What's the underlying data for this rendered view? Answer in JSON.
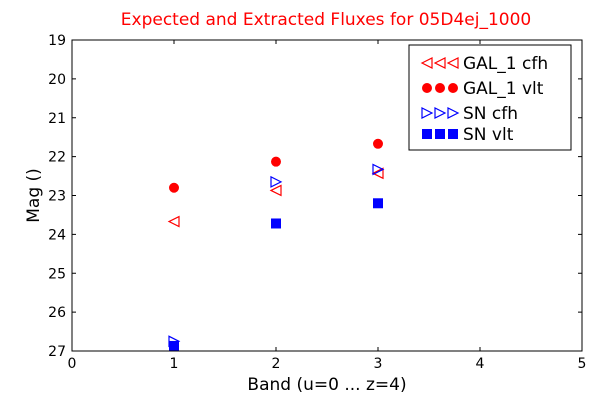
{
  "chart_data": {
    "type": "scatter",
    "title": "Expected and Extracted Fluxes for 05D4ej_1000",
    "title_color": "#ff0000",
    "xlabel": "Band (u=0 ... z=4)",
    "ylabel": "Mag ()",
    "xlim": [
      0,
      5
    ],
    "ylim": [
      27,
      19
    ],
    "y_inverted": true,
    "grid": false,
    "legend_position": "top-right",
    "x_ticks": [
      "0",
      "1",
      "2",
      "3",
      "4",
      "5"
    ],
    "y_ticks": [
      "19",
      "20",
      "21",
      "22",
      "23",
      "24",
      "25",
      "26",
      "27"
    ],
    "series": [
      {
        "name": "GAL_1 cfh",
        "marker": "triangle-left",
        "color": "#ff0000",
        "filled": false,
        "points": [
          {
            "x": 1.0,
            "y": 23.67
          },
          {
            "x": 2.0,
            "y": 22.87
          },
          {
            "x": 3.0,
            "y": 22.43
          }
        ]
      },
      {
        "name": "GAL_1 vlt",
        "marker": "circle",
        "color": "#ff0000",
        "filled": true,
        "points": [
          {
            "x": 1.0,
            "y": 22.8
          },
          {
            "x": 2.0,
            "y": 22.13
          },
          {
            "x": 3.0,
            "y": 21.67
          }
        ]
      },
      {
        "name": "SN cfh",
        "marker": "triangle-right",
        "color": "#0000ff",
        "filled": false,
        "points": [
          {
            "x": 1.0,
            "y": 26.75
          },
          {
            "x": 2.0,
            "y": 22.65
          },
          {
            "x": 3.0,
            "y": 22.33
          }
        ]
      },
      {
        "name": "SN vlt",
        "marker": "square",
        "color": "#0000ff",
        "filled": true,
        "points": [
          {
            "x": 1.0,
            "y": 26.87
          },
          {
            "x": 2.0,
            "y": 23.72
          },
          {
            "x": 3.0,
            "y": 23.2
          }
        ]
      }
    ]
  }
}
